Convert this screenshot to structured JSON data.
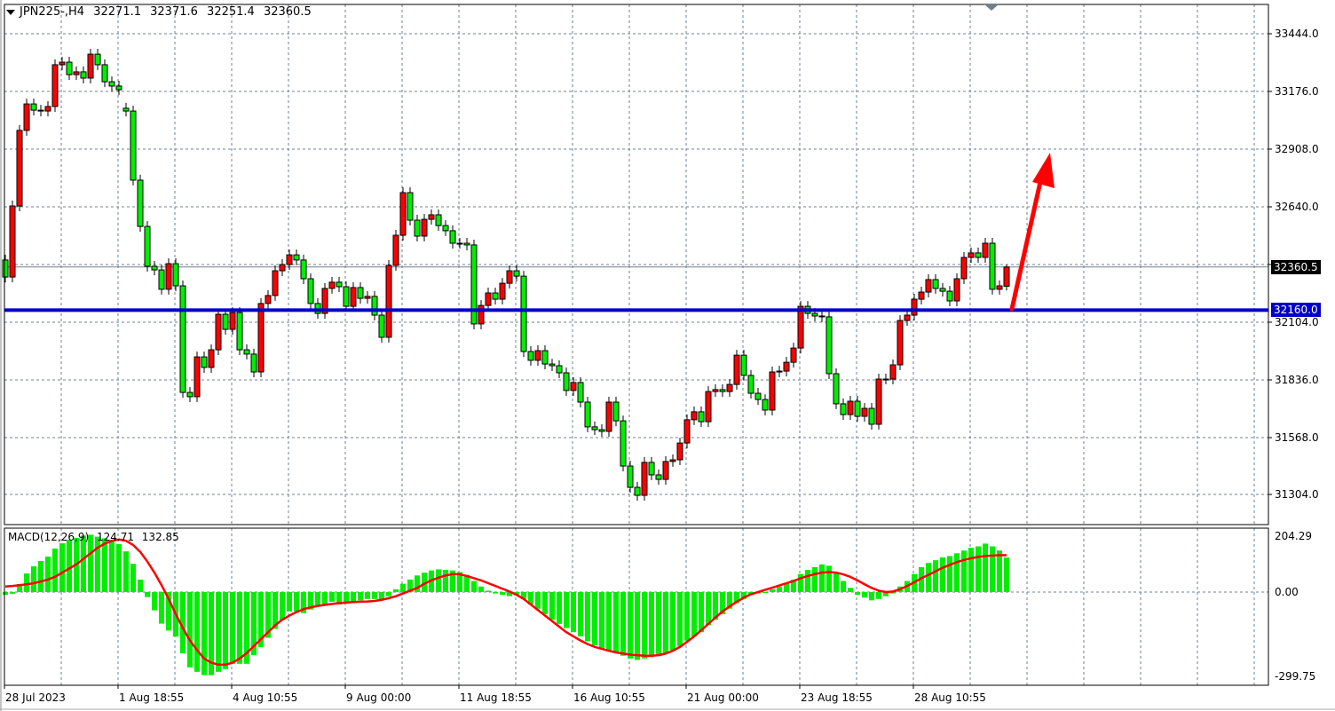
{
  "header": {
    "symbol": "JPN225-,H4",
    "open": "32271.1",
    "high": "32371.6",
    "low": "32251.4",
    "close": "32360.5"
  },
  "price_axis": {
    "ticks": [
      "33444.0",
      "33176.0",
      "32908.0",
      "32640.0",
      "32104.0",
      "31836.0",
      "31568.0",
      "31304.0"
    ],
    "current_price_tag": "32360.5",
    "level_tag": "32160.0"
  },
  "macd": {
    "label": "MACD(12,26,9)",
    "main_value": "124.71",
    "signal_value": "132.85",
    "ticks": [
      "204.29",
      "0.00",
      "-299.75"
    ]
  },
  "time_axis": {
    "labels": [
      "28 Jul 2023",
      "1 Aug 18:55",
      "4 Aug 10:55",
      "9 Aug 00:00",
      "11 Aug 18:55",
      "16 Aug 10:55",
      "21 Aug 00:00",
      "23 Aug 18:55",
      "28 Aug 10:55"
    ]
  },
  "colors": {
    "bull_candle": "#ff0000",
    "bear_candle": "#00ee00",
    "level_line": "#0000c8",
    "arrow": "#ff0000",
    "macd_histogram": "#00ee00",
    "macd_signal": "#ff0000",
    "grid": "#708090"
  },
  "chart_data": [
    {
      "type": "candlestick",
      "title": "JPN225-,H4",
      "ylim": [
        31168,
        33580
      ],
      "grid": true,
      "horizontal_line": 32160.0,
      "current_price": 32360.5,
      "last_candle": {
        "open": 32271.1,
        "high": 32371.6,
        "low": 32251.4,
        "close": 32360.5
      },
      "annotation": "red upward arrow from the 32160.0 line",
      "open": [
        32393,
        32314,
        32644,
        32995,
        33118,
        33089,
        33085,
        33106,
        33300,
        33312,
        33254,
        33267,
        33238,
        33349,
        33300,
        33221,
        33201,
        33098,
        33085,
        32764,
        32549,
        32364,
        32347,
        32257,
        32376,
        32273,
        31778,
        31758,
        31943,
        31894,
        31976,
        32141,
        32071,
        32149,
        31976,
        31956,
        31873,
        32191,
        32228,
        32343,
        32372,
        32417,
        32393,
        32306,
        32191,
        32145,
        32261,
        32290,
        32269,
        32178,
        32265,
        32215,
        32224,
        32137,
        32034,
        32368,
        32508,
        32706,
        32578,
        32504,
        32582,
        32603,
        32553,
        32529,
        32471,
        32471,
        32463,
        32096,
        32182,
        32240,
        32211,
        32285,
        32343,
        32318,
        31968,
        31927,
        31972,
        31910,
        31902,
        31869,
        31787,
        31824,
        31733,
        31618,
        31605,
        31597,
        31733,
        31646,
        31436,
        31337,
        31300,
        31453,
        31395,
        31374,
        31457,
        31465,
        31543,
        31651,
        31688,
        31642,
        31782,
        31791,
        31782,
        31815,
        31951,
        31857,
        31774,
        31745,
        31696,
        31873,
        31877,
        31918,
        31984,
        32178,
        32145,
        32133,
        32129,
        31865,
        31725,
        31675,
        31737,
        31667,
        31704,
        31630,
        31840,
        31840,
        31906,
        32112,
        32137,
        32211,
        32244,
        32302,
        32261,
        32248,
        32203,
        32306,
        32405,
        32426,
        32405,
        32471,
        32257,
        32271.1
      ],
      "close": [
        32314,
        32644,
        32995,
        33118,
        33089,
        33085,
        33106,
        33300,
        33312,
        33254,
        33267,
        33238,
        33349,
        33300,
        33221,
        33201,
        33184,
        33085,
        32764,
        32549,
        32364,
        32347,
        32257,
        32376,
        32273,
        31778,
        31758,
        31943,
        31894,
        31976,
        32141,
        32071,
        32149,
        31976,
        31956,
        31873,
        32191,
        32228,
        32343,
        32372,
        32417,
        32393,
        32306,
        32191,
        32145,
        32261,
        32290,
        32269,
        32178,
        32265,
        32215,
        32224,
        32137,
        32034,
        32368,
        32508,
        32706,
        32578,
        32504,
        32582,
        32603,
        32553,
        32529,
        32471,
        32471,
        32463,
        32096,
        32182,
        32240,
        32211,
        32285,
        32343,
        32318,
        31968,
        31927,
        31972,
        31910,
        31902,
        31869,
        31787,
        31824,
        31733,
        31618,
        31605,
        31597,
        31733,
        31646,
        31436,
        31337,
        31300,
        31453,
        31395,
        31374,
        31457,
        31465,
        31543,
        31651,
        31688,
        31642,
        31782,
        31791,
        31782,
        31815,
        31951,
        31857,
        31774,
        31745,
        31696,
        31873,
        31877,
        31918,
        31984,
        32178,
        32145,
        32133,
        32129,
        31865,
        31725,
        31675,
        31737,
        31667,
        31704,
        31630,
        31840,
        31840,
        31906,
        32112,
        32137,
        32211,
        32244,
        32302,
        32261,
        32248,
        32203,
        32306,
        32405,
        32426,
        32405,
        32471,
        32257,
        32273,
        32360.5
      ]
    },
    {
      "type": "bar",
      "title": "MACD(12,26,9)",
      "ylim": [
        -299.75,
        204.29
      ],
      "series": [
        {
          "name": "MACD",
          "kind": "histogram",
          "values": [
            -10,
            -6,
            29,
            67,
            93,
            112,
            128,
            157,
            176,
            189,
            195,
            204,
            207,
            200,
            194,
            189,
            173,
            147,
            102,
            45,
            -18,
            -66,
            -114,
            -139,
            -161,
            -221,
            -272,
            -288,
            -300,
            -300,
            -288,
            -278,
            -259,
            -259,
            -259,
            -228,
            -199,
            -165,
            -133,
            -101,
            -70,
            -70,
            -76,
            -63,
            -47,
            -50,
            -35,
            -45,
            -40,
            -35,
            -30,
            -25,
            -25,
            -30,
            -15,
            10,
            30,
            45,
            60,
            70,
            78,
            82,
            80,
            78,
            72,
            62,
            40,
            20,
            5,
            -5,
            -10,
            -15,
            -12,
            -25,
            -45,
            -60,
            -80,
            -100,
            -115,
            -130,
            -145,
            -160,
            -178,
            -192,
            -205,
            -212,
            -220,
            -230,
            -240,
            -245,
            -240,
            -235,
            -230,
            -220,
            -210,
            -195,
            -175,
            -160,
            -145,
            -120,
            -100,
            -80,
            -60,
            -40,
            -25,
            -10,
            -5,
            -3,
            10,
            20,
            30,
            45,
            65,
            80,
            90,
            100,
            95,
            70,
            40,
            15,
            -10,
            -20,
            -30,
            -25,
            -15,
            -5,
            20,
            40,
            65,
            90,
            105,
            115,
            125,
            130,
            140,
            150,
            160,
            165,
            175,
            165,
            150,
            124.71
          ]
        },
        {
          "name": "Signal",
          "kind": "line",
          "values": [
            20,
            22,
            25,
            28,
            32,
            38,
            45,
            55,
            70,
            85,
            100,
            120,
            140,
            160,
            175,
            185,
            190,
            185,
            170,
            145,
            110,
            70,
            25,
            -25,
            -80,
            -130,
            -175,
            -210,
            -240,
            -255,
            -262,
            -262,
            -255,
            -240,
            -220,
            -195,
            -170,
            -145,
            -120,
            -100,
            -85,
            -72,
            -62,
            -55,
            -50,
            -46,
            -43,
            -40,
            -38,
            -36,
            -35,
            -34,
            -32,
            -28,
            -22,
            -15,
            -5,
            5,
            15,
            30,
            42,
            52,
            60,
            65,
            64,
            58,
            50,
            42,
            32,
            22,
            12,
            2,
            -10,
            -25,
            -45,
            -65,
            -85,
            -105,
            -125,
            -145,
            -160,
            -175,
            -188,
            -198,
            -205,
            -212,
            -218,
            -222,
            -226,
            -228,
            -230,
            -230,
            -228,
            -222,
            -212,
            -198,
            -180,
            -160,
            -138,
            -115,
            -92,
            -70,
            -52,
            -35,
            -20,
            -8,
            0,
            8,
            16,
            24,
            32,
            40,
            50,
            58,
            65,
            70,
            72,
            70,
            64,
            55,
            42,
            28,
            15,
            5,
            0,
            2,
            10,
            22,
            35,
            50,
            62,
            75,
            88,
            98,
            108,
            116,
            122,
            127,
            130,
            132,
            133,
            132.85
          ]
        }
      ]
    }
  ]
}
